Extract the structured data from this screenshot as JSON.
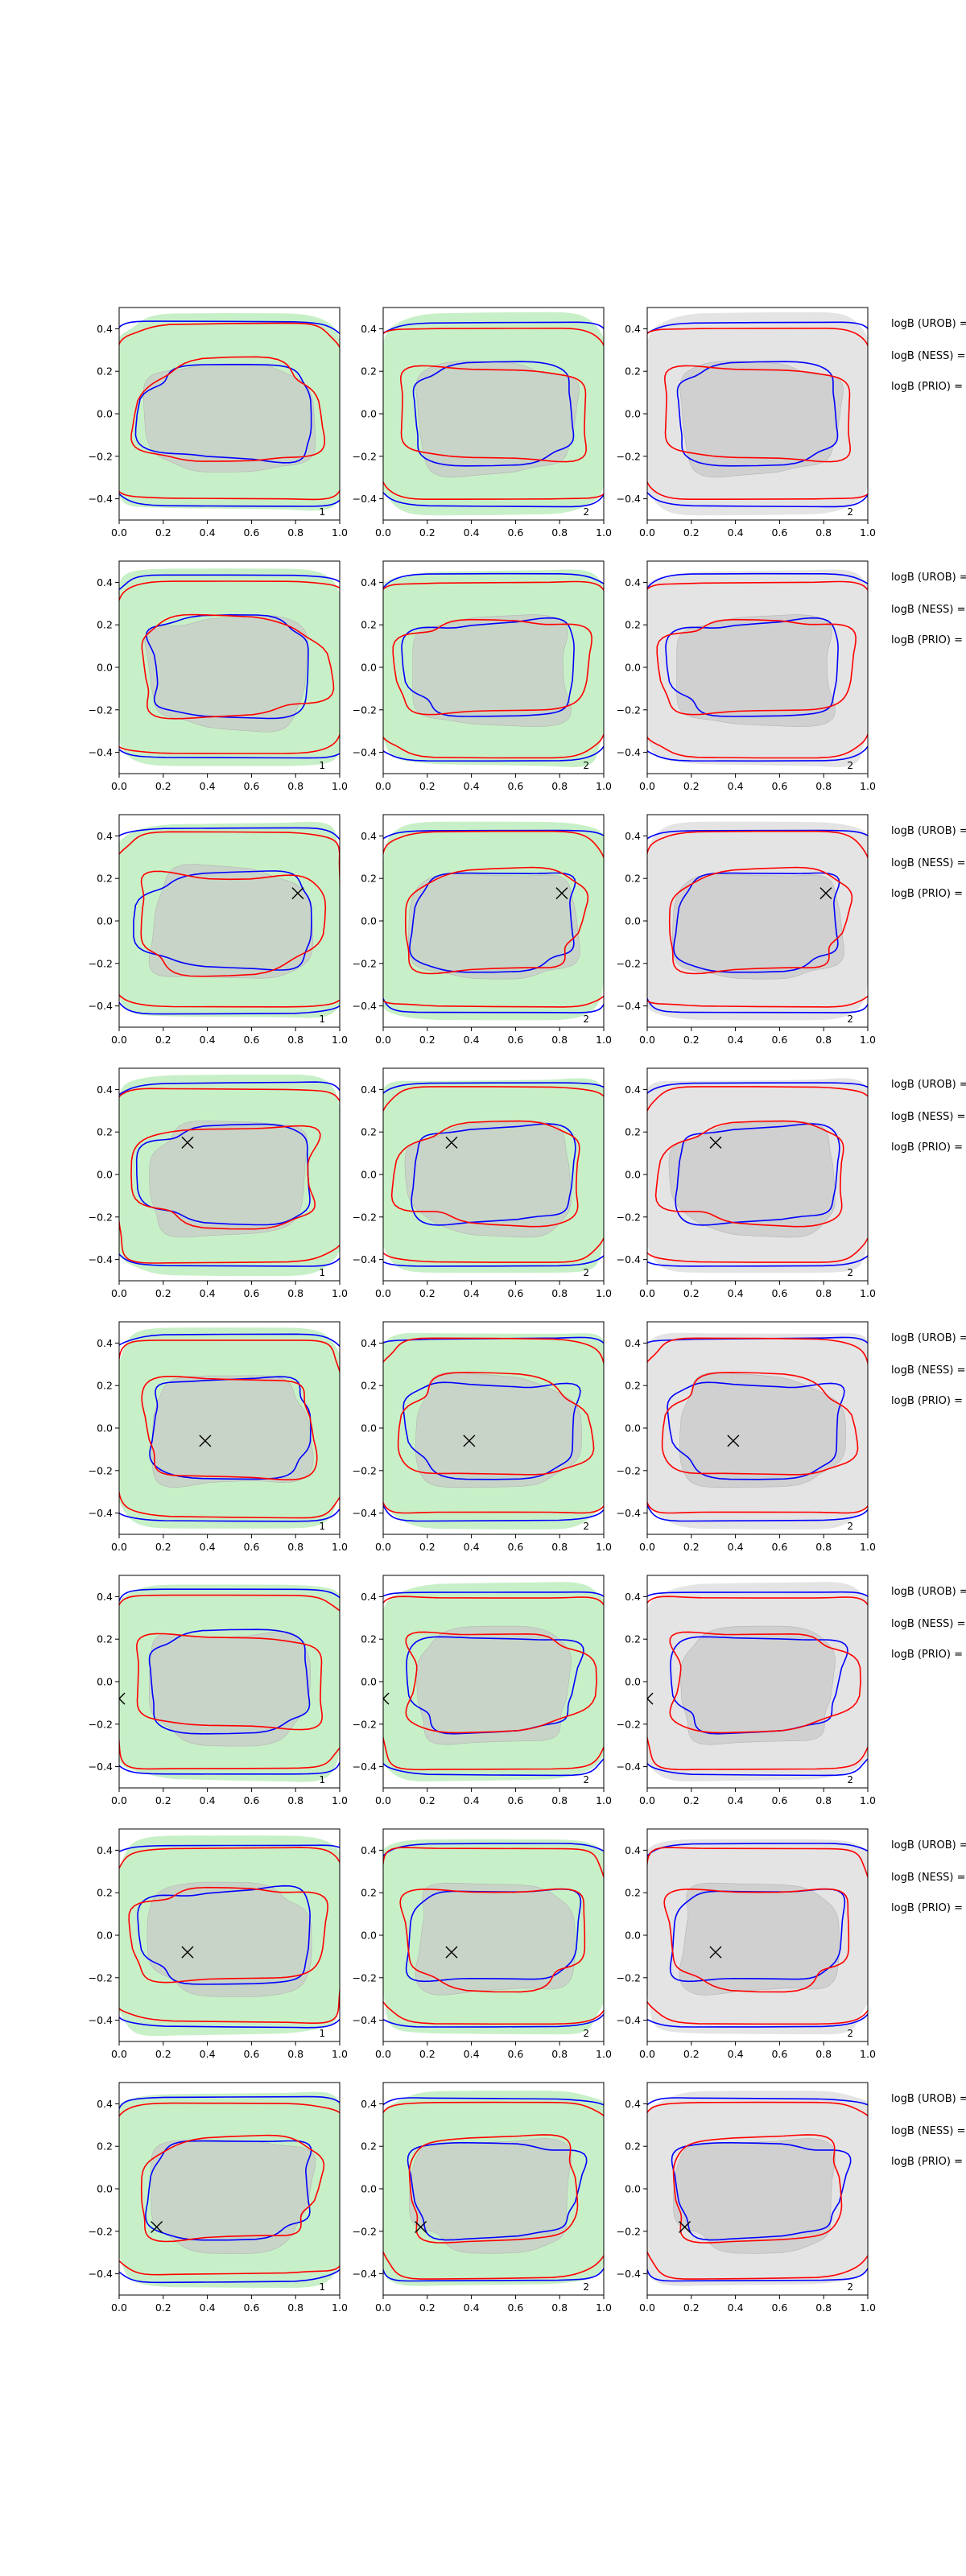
{
  "chart_data": {
    "type": "contour",
    "rows": 8,
    "columns": 3,
    "xlim": [
      0.0,
      1.0
    ],
    "ylim": [
      -0.5,
      0.5
    ],
    "x_ticks": [
      "0.0",
      "0.2",
      "0.4",
      "0.6",
      "0.8",
      "1.0"
    ],
    "y_ticks": [
      "0.4",
      "0.2",
      "0.0",
      "−0.2",
      "−0.4"
    ],
    "column_ids": [
      "1",
      "2",
      "2"
    ],
    "column_fills": [
      "green",
      "green",
      "gray"
    ],
    "row_labels": [
      "logB (UROB) =",
      "logB (NESS) =",
      "logB (PRIO) ="
    ],
    "markers": [
      null,
      null,
      {
        "x": 0.81,
        "y": 0.13
      },
      {
        "x": 0.31,
        "y": 0.15
      },
      {
        "x": 0.39,
        "y": -0.06
      },
      {
        "x": 0.0,
        "y": -0.08
      },
      {
        "x": 0.31,
        "y": -0.08
      },
      {
        "x": 0.17,
        "y": -0.18
      }
    ],
    "colors": {
      "blue": "#0000ff",
      "red": "#ff0000",
      "green_fill": "#c8f0c8",
      "gray_fill": "#e4e4e4",
      "inner_fill": "#c8c8c8"
    }
  }
}
